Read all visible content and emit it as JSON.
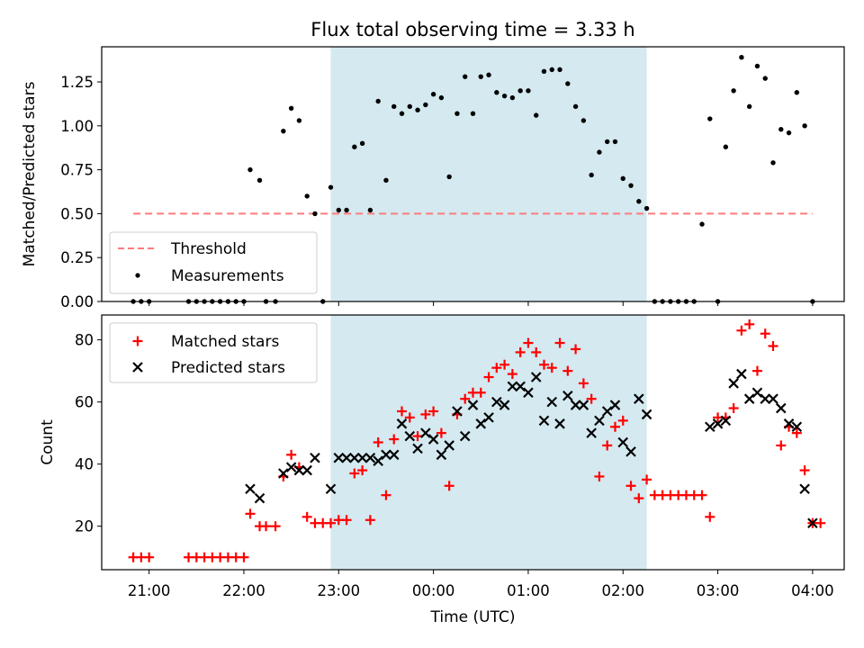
{
  "chart_data": [
    {
      "type": "scatter",
      "title": "Flux total observing time = 3.33 h",
      "ylabel": "Matched/Predicted stars",
      "xlim": [
        "20:30",
        "04:20"
      ],
      "ylim": [
        0,
        1.45
      ],
      "yticks": [
        "0.00",
        "0.25",
        "0.50",
        "0.75",
        "1.00",
        "1.25"
      ],
      "shaded_interval": [
        "22:55",
        "02:15"
      ],
      "shade_color": "#d4e9f0",
      "legend": {
        "position": "lower-left",
        "entries": [
          "Threshold",
          "Measurements"
        ]
      },
      "threshold": {
        "name": "Threshold",
        "value": 0.5,
        "x_range": [
          "20:50",
          "04:00"
        ],
        "color": "#ff7b7b",
        "style": "dashed"
      },
      "measurements": {
        "name": "Measurements",
        "color": "#000000",
        "points": [
          [
            "20:50",
            0
          ],
          [
            "20:55",
            0
          ],
          [
            "21:00",
            0
          ],
          [
            "21:25",
            0
          ],
          [
            "21:30",
            0
          ],
          [
            "21:35",
            0
          ],
          [
            "21:40",
            0
          ],
          [
            "21:45",
            0
          ],
          [
            "21:50",
            0
          ],
          [
            "21:55",
            0
          ],
          [
            "22:00",
            0
          ],
          [
            "22:04",
            0.75
          ],
          [
            "22:10",
            0.69
          ],
          [
            "22:14",
            0
          ],
          [
            "22:20",
            0
          ],
          [
            "22:25",
            0.97
          ],
          [
            "22:30",
            1.1
          ],
          [
            "22:35",
            1.03
          ],
          [
            "22:40",
            0.6
          ],
          [
            "22:45",
            0.5
          ],
          [
            "22:50",
            0
          ],
          [
            "22:55",
            0.65
          ],
          [
            "23:00",
            0.52
          ],
          [
            "23:05",
            0.52
          ],
          [
            "23:10",
            0.88
          ],
          [
            "23:15",
            0.9
          ],
          [
            "23:20",
            0.52
          ],
          [
            "23:25",
            1.14
          ],
          [
            "23:30",
            0.69
          ],
          [
            "23:35",
            1.11
          ],
          [
            "23:40",
            1.07
          ],
          [
            "23:45",
            1.11
          ],
          [
            "23:50",
            1.09
          ],
          [
            "23:55",
            1.12
          ],
          [
            "00:00",
            1.18
          ],
          [
            "00:05",
            1.16
          ],
          [
            "00:10",
            0.71
          ],
          [
            "00:15",
            1.07
          ],
          [
            "00:20",
            1.28
          ],
          [
            "00:25",
            1.07
          ],
          [
            "00:30",
            1.28
          ],
          [
            "00:35",
            1.29
          ],
          [
            "00:40",
            1.19
          ],
          [
            "00:45",
            1.17
          ],
          [
            "00:50",
            1.16
          ],
          [
            "00:55",
            1.2
          ],
          [
            "01:00",
            1.2
          ],
          [
            "01:05",
            1.06
          ],
          [
            "01:10",
            1.31
          ],
          [
            "01:15",
            1.32
          ],
          [
            "01:20",
            1.32
          ],
          [
            "01:25",
            1.24
          ],
          [
            "01:30",
            1.11
          ],
          [
            "01:35",
            1.03
          ],
          [
            "01:40",
            0.72
          ],
          [
            "01:45",
            0.85
          ],
          [
            "01:50",
            0.91
          ],
          [
            "01:55",
            0.91
          ],
          [
            "02:00",
            0.7
          ],
          [
            "02:05",
            0.66
          ],
          [
            "02:10",
            0.57
          ],
          [
            "02:15",
            0.53
          ],
          [
            "02:20",
            0
          ],
          [
            "02:25",
            0
          ],
          [
            "02:30",
            0
          ],
          [
            "02:35",
            0
          ],
          [
            "02:40",
            0
          ],
          [
            "02:45",
            0
          ],
          [
            "02:50",
            0.44
          ],
          [
            "02:55",
            1.04
          ],
          [
            "03:00",
            0
          ],
          [
            "03:05",
            0.88
          ],
          [
            "03:10",
            1.2
          ],
          [
            "03:15",
            1.39
          ],
          [
            "03:20",
            1.11
          ],
          [
            "03:25",
            1.34
          ],
          [
            "03:30",
            1.27
          ],
          [
            "03:35",
            0.79
          ],
          [
            "03:40",
            0.98
          ],
          [
            "03:45",
            0.96
          ],
          [
            "03:50",
            1.19
          ],
          [
            "03:55",
            1.0
          ],
          [
            "04:00",
            0
          ]
        ]
      }
    },
    {
      "type": "scatter",
      "xlabel": "Time (UTC)",
      "ylabel": "Count",
      "xlim": [
        "20:30",
        "04:20"
      ],
      "ylim": [
        6,
        88
      ],
      "xticks": [
        "21:00",
        "22:00",
        "23:00",
        "00:00",
        "01:00",
        "02:00",
        "03:00",
        "04:00"
      ],
      "yticks": [
        "20",
        "40",
        "60",
        "80"
      ],
      "shaded_interval": [
        "22:55",
        "02:15"
      ],
      "shade_color": "#d4e9f0",
      "legend": {
        "position": "upper-left",
        "entries": [
          "Matched stars",
          "Predicted stars"
        ]
      },
      "series": [
        {
          "name": "Matched stars",
          "marker": "plus",
          "color": "#ff0000",
          "points": [
            [
              "20:50",
              10
            ],
            [
              "20:55",
              10
            ],
            [
              "21:00",
              10
            ],
            [
              "21:25",
              10
            ],
            [
              "21:30",
              10
            ],
            [
              "21:35",
              10
            ],
            [
              "21:40",
              10
            ],
            [
              "21:45",
              10
            ],
            [
              "21:50",
              10
            ],
            [
              "21:55",
              10
            ],
            [
              "22:00",
              10
            ],
            [
              "22:04",
              24
            ],
            [
              "22:10",
              20
            ],
            [
              "22:14",
              20
            ],
            [
              "22:20",
              20
            ],
            [
              "22:25",
              36
            ],
            [
              "22:30",
              43
            ],
            [
              "22:35",
              39
            ],
            [
              "22:40",
              23
            ],
            [
              "22:45",
              21
            ],
            [
              "22:50",
              21
            ],
            [
              "22:55",
              21
            ],
            [
              "23:00",
              22
            ],
            [
              "23:05",
              22
            ],
            [
              "23:10",
              37
            ],
            [
              "23:15",
              38
            ],
            [
              "23:20",
              22
            ],
            [
              "23:25",
              47
            ],
            [
              "23:30",
              30
            ],
            [
              "23:35",
              48
            ],
            [
              "23:40",
              57
            ],
            [
              "23:45",
              55
            ],
            [
              "23:50",
              49
            ],
            [
              "23:55",
              56
            ],
            [
              "00:00",
              57
            ],
            [
              "00:05",
              50
            ],
            [
              "00:10",
              33
            ],
            [
              "00:15",
              56
            ],
            [
              "00:20",
              61
            ],
            [
              "00:25",
              63
            ],
            [
              "00:30",
              63
            ],
            [
              "00:35",
              68
            ],
            [
              "00:40",
              71
            ],
            [
              "00:45",
              72
            ],
            [
              "00:50",
              69
            ],
            [
              "00:55",
              76
            ],
            [
              "01:00",
              79
            ],
            [
              "01:05",
              76
            ],
            [
              "01:10",
              72
            ],
            [
              "01:15",
              71
            ],
            [
              "01:20",
              79
            ],
            [
              "01:25",
              70
            ],
            [
              "01:30",
              77
            ],
            [
              "01:35",
              66
            ],
            [
              "01:40",
              61
            ],
            [
              "01:45",
              36
            ],
            [
              "01:50",
              46
            ],
            [
              "01:55",
              52
            ],
            [
              "02:00",
              54
            ],
            [
              "02:05",
              33
            ],
            [
              "02:10",
              29
            ],
            [
              "02:15",
              35
            ],
            [
              "02:20",
              30
            ],
            [
              "02:25",
              30
            ],
            [
              "02:30",
              30
            ],
            [
              "02:35",
              30
            ],
            [
              "02:40",
              30
            ],
            [
              "02:45",
              30
            ],
            [
              "02:50",
              30
            ],
            [
              "02:55",
              23
            ],
            [
              "03:00",
              55
            ],
            [
              "03:05",
              55
            ],
            [
              "03:10",
              58
            ],
            [
              "03:15",
              83
            ],
            [
              "03:20",
              85
            ],
            [
              "03:25",
              70
            ],
            [
              "03:30",
              82
            ],
            [
              "03:35",
              78
            ],
            [
              "03:40",
              46
            ],
            [
              "03:45",
              52
            ],
            [
              "03:50",
              50
            ],
            [
              "03:55",
              38
            ],
            [
              "04:00",
              21
            ],
            [
              "04:05",
              21
            ]
          ]
        },
        {
          "name": "Predicted stars",
          "marker": "x",
          "color": "#000000",
          "points": [
            [
              "22:04",
              32
            ],
            [
              "22:10",
              29
            ],
            [
              "22:25",
              37
            ],
            [
              "22:30",
              39
            ],
            [
              "22:35",
              38
            ],
            [
              "22:40",
              38
            ],
            [
              "22:45",
              42
            ],
            [
              "22:55",
              32
            ],
            [
              "23:00",
              42
            ],
            [
              "23:05",
              42
            ],
            [
              "23:10",
              42
            ],
            [
              "23:15",
              42
            ],
            [
              "23:20",
              42
            ],
            [
              "23:25",
              41
            ],
            [
              "23:30",
              43
            ],
            [
              "23:35",
              43
            ],
            [
              "23:40",
              53
            ],
            [
              "23:45",
              49
            ],
            [
              "23:50",
              45
            ],
            [
              "23:55",
              50
            ],
            [
              "00:00",
              48
            ],
            [
              "00:05",
              43
            ],
            [
              "00:10",
              46
            ],
            [
              "00:15",
              57
            ],
            [
              "00:20",
              49
            ],
            [
              "00:25",
              59
            ],
            [
              "00:30",
              53
            ],
            [
              "00:35",
              55
            ],
            [
              "00:40",
              60
            ],
            [
              "00:45",
              59
            ],
            [
              "00:50",
              65
            ],
            [
              "00:55",
              65
            ],
            [
              "01:00",
              63
            ],
            [
              "01:05",
              68
            ],
            [
              "01:10",
              54
            ],
            [
              "01:15",
              60
            ],
            [
              "01:20",
              53
            ],
            [
              "01:25",
              62
            ],
            [
              "01:30",
              59
            ],
            [
              "01:35",
              59
            ],
            [
              "01:40",
              50
            ],
            [
              "01:45",
              54
            ],
            [
              "01:50",
              57
            ],
            [
              "01:55",
              59
            ],
            [
              "02:00",
              47
            ],
            [
              "02:05",
              44
            ],
            [
              "02:10",
              61
            ],
            [
              "02:15",
              56
            ],
            [
              "02:55",
              52
            ],
            [
              "03:00",
              53
            ],
            [
              "03:05",
              54
            ],
            [
              "03:10",
              66
            ],
            [
              "03:15",
              69
            ],
            [
              "03:20",
              61
            ],
            [
              "03:25",
              63
            ],
            [
              "03:30",
              61
            ],
            [
              "03:35",
              61
            ],
            [
              "03:40",
              58
            ],
            [
              "03:45",
              53
            ],
            [
              "03:50",
              52
            ],
            [
              "03:55",
              32
            ],
            [
              "04:00",
              21
            ]
          ]
        }
      ]
    }
  ]
}
